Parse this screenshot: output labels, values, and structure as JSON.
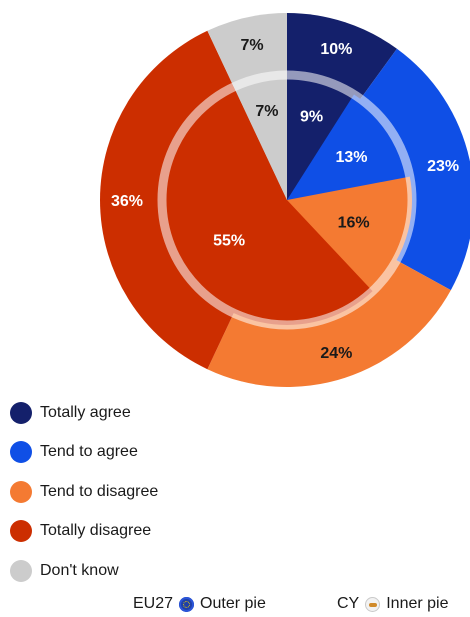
{
  "chart_data": {
    "type": "pie",
    "categories": [
      "Totally agree",
      "Tend to agree",
      "Tend to disagree",
      "Totally disagree",
      "Don't know"
    ],
    "colors": [
      "#14206b",
      "#0f4fe6",
      "#f47a32",
      "#cc2e00",
      "#cccccc"
    ],
    "series": [
      {
        "name": "EU27",
        "ring": "Outer pie",
        "values": [
          10,
          23,
          24,
          36,
          7
        ],
        "labels": [
          "10%",
          "23%",
          "24%",
          "36%",
          "7%"
        ]
      },
      {
        "name": "CY",
        "ring": "Inner pie",
        "values": [
          9,
          13,
          16,
          55,
          7
        ],
        "labels": [
          "9%",
          "13%",
          "16%",
          "55%",
          "7%"
        ]
      }
    ]
  },
  "legend": {
    "items": [
      {
        "label": "Totally agree",
        "color": "#14206b"
      },
      {
        "label": "Tend to agree",
        "color": "#0f4fe6"
      },
      {
        "label": "Tend to disagree",
        "color": "#f47a32"
      },
      {
        "label": "Totally disagree",
        "color": "#cc2e00"
      },
      {
        "label": "Don't know",
        "color": "#cccccc"
      }
    ]
  },
  "footer": {
    "outer_country": "EU27",
    "outer_label": "Outer pie",
    "outer_icon": "eu-flag-icon",
    "inner_country": "CY",
    "inner_label": "Inner pie",
    "inner_icon": "cyprus-flag-icon"
  }
}
